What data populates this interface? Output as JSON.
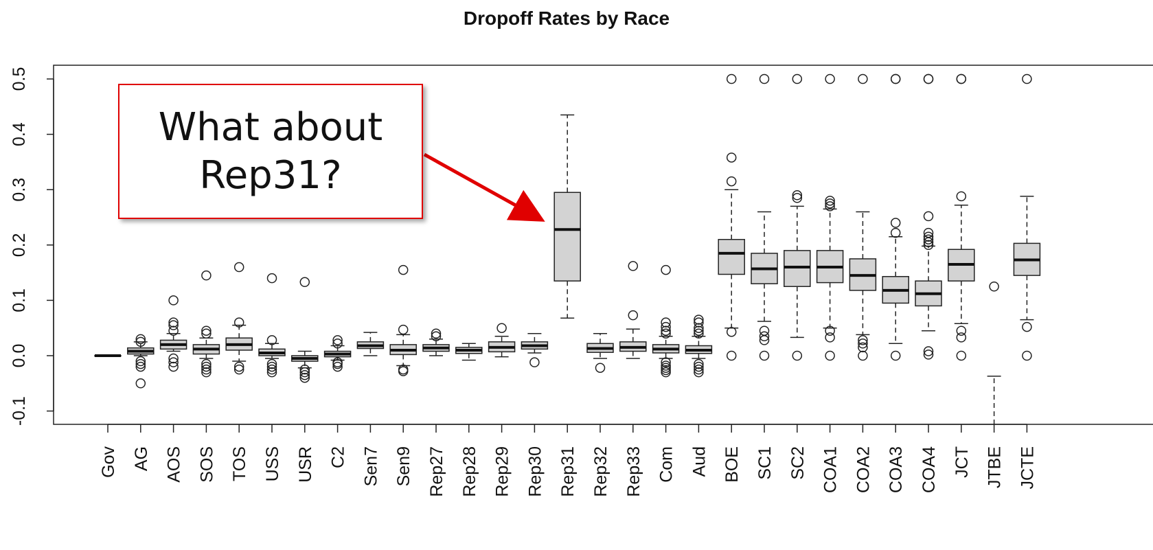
{
  "chart_data": {
    "type": "boxplot",
    "title": "Dropoff Rates by Race",
    "xlabel": "",
    "ylabel": "",
    "ylim": [
      -0.12,
      0.52
    ],
    "yticks": [
      -0.1,
      0.0,
      0.1,
      0.2,
      0.3,
      0.4,
      0.5
    ],
    "ytick_labels": [
      "-0.1",
      "0.0",
      "0.1",
      "0.2",
      "0.3",
      "0.4",
      "0.5"
    ],
    "grid": false,
    "box_fill": "#d3d3d3",
    "categories": [
      "Gov",
      "AG",
      "AOS",
      "SOS",
      "TOS",
      "USS",
      "USR",
      "C2",
      "Sen7",
      "Sen9",
      "Rep27",
      "Rep28",
      "Rep29",
      "Rep30",
      "Rep31",
      "Rep32",
      "Rep33",
      "Com",
      "Aud",
      "BOE",
      "SC1",
      "SC2",
      "COA1",
      "COA2",
      "COA3",
      "COA4",
      "JCT",
      "JTBE",
      "JCTE"
    ],
    "boxes": [
      {
        "min": 0.0,
        "q1": 0.0,
        "median": 0.0,
        "q3": 0.0,
        "max": 0.0,
        "outliers": []
      },
      {
        "min": 0.0,
        "q1": 0.003,
        "median": 0.008,
        "q3": 0.014,
        "max": 0.025,
        "outliers": [
          0.03,
          0.025,
          -0.01,
          -0.015,
          -0.02,
          -0.05
        ]
      },
      {
        "min": 0.008,
        "q1": 0.012,
        "median": 0.02,
        "q3": 0.028,
        "max": 0.04,
        "outliers": [
          0.1,
          0.06,
          0.055,
          0.045,
          -0.005,
          -0.012,
          -0.02
        ]
      },
      {
        "min": -0.005,
        "q1": 0.003,
        "median": 0.012,
        "q3": 0.02,
        "max": 0.032,
        "outliers": [
          0.145,
          0.045,
          0.04,
          -0.015,
          -0.02,
          -0.025,
          -0.03
        ]
      },
      {
        "min": -0.01,
        "q1": 0.01,
        "median": 0.02,
        "q3": 0.032,
        "max": 0.055,
        "outliers": [
          0.16,
          0.06,
          -0.02,
          -0.025
        ]
      },
      {
        "min": -0.005,
        "q1": 0.0,
        "median": 0.005,
        "q3": 0.012,
        "max": 0.022,
        "outliers": [
          0.14,
          0.028,
          -0.015,
          -0.02,
          -0.025,
          -0.03
        ]
      },
      {
        "min": -0.022,
        "q1": -0.01,
        "median": -0.005,
        "q3": 0.0,
        "max": 0.008,
        "outliers": [
          0.133,
          -0.025,
          -0.03,
          -0.035,
          -0.04
        ]
      },
      {
        "min": -0.008,
        "q1": -0.002,
        "median": 0.003,
        "q3": 0.008,
        "max": 0.018,
        "outliers": [
          0.028,
          0.022,
          -0.012,
          -0.015,
          -0.02
        ]
      },
      {
        "min": 0.0,
        "q1": 0.013,
        "median": 0.018,
        "q3": 0.025,
        "max": 0.042,
        "outliers": []
      },
      {
        "min": -0.018,
        "q1": 0.002,
        "median": 0.01,
        "q3": 0.02,
        "max": 0.038,
        "outliers": [
          0.155,
          0.047,
          -0.025,
          -0.028
        ]
      },
      {
        "min": 0.0,
        "q1": 0.008,
        "median": 0.014,
        "q3": 0.02,
        "max": 0.03,
        "outliers": [
          0.04,
          0.035
        ]
      },
      {
        "min": -0.008,
        "q1": 0.004,
        "median": 0.01,
        "q3": 0.015,
        "max": 0.022,
        "outliers": []
      },
      {
        "min": -0.002,
        "q1": 0.007,
        "median": 0.015,
        "q3": 0.025,
        "max": 0.035,
        "outliers": [
          0.05
        ]
      },
      {
        "min": 0.005,
        "q1": 0.012,
        "median": 0.018,
        "q3": 0.025,
        "max": 0.04,
        "outliers": [
          -0.012
        ]
      },
      {
        "min": 0.068,
        "q1": 0.135,
        "median": 0.228,
        "q3": 0.295,
        "max": 0.435,
        "outliers": []
      },
      {
        "min": -0.005,
        "q1": 0.006,
        "median": 0.013,
        "q3": 0.022,
        "max": 0.04,
        "outliers": [
          -0.022
        ]
      },
      {
        "min": -0.005,
        "q1": 0.008,
        "median": 0.015,
        "q3": 0.025,
        "max": 0.048,
        "outliers": [
          0.162,
          0.073
        ]
      },
      {
        "min": -0.005,
        "q1": 0.005,
        "median": 0.012,
        "q3": 0.02,
        "max": 0.035,
        "outliers": [
          0.155,
          0.06,
          0.052,
          0.045,
          0.04,
          -0.012,
          -0.018,
          -0.022,
          -0.026,
          -0.03
        ]
      },
      {
        "min": -0.005,
        "q1": 0.004,
        "median": 0.01,
        "q3": 0.018,
        "max": 0.035,
        "outliers": [
          0.065,
          0.06,
          0.05,
          0.045,
          0.04,
          -0.015,
          -0.02,
          -0.025,
          -0.03
        ]
      },
      {
        "min": 0.05,
        "q1": 0.147,
        "median": 0.185,
        "q3": 0.21,
        "max": 0.3,
        "outliers": [
          0.5,
          0.358,
          0.315,
          0.043,
          0.0
        ]
      },
      {
        "min": 0.062,
        "q1": 0.13,
        "median": 0.157,
        "q3": 0.185,
        "max": 0.26,
        "outliers": [
          0.5,
          0.045,
          0.035,
          0.028,
          0.0
        ]
      },
      {
        "min": 0.033,
        "q1": 0.125,
        "median": 0.16,
        "q3": 0.19,
        "max": 0.27,
        "outliers": [
          0.5,
          0.29,
          0.285,
          0.0
        ]
      },
      {
        "min": 0.05,
        "q1": 0.132,
        "median": 0.16,
        "q3": 0.19,
        "max": 0.265,
        "outliers": [
          0.5,
          0.28,
          0.275,
          0.27,
          0.045,
          0.033,
          0.0
        ]
      },
      {
        "min": 0.038,
        "q1": 0.118,
        "median": 0.145,
        "q3": 0.175,
        "max": 0.26,
        "outliers": [
          0.5,
          0.028,
          0.022,
          0.015,
          0.0
        ]
      },
      {
        "min": 0.022,
        "q1": 0.095,
        "median": 0.118,
        "q3": 0.143,
        "max": 0.215,
        "outliers": [
          0.5,
          0.5,
          0.24,
          0.222,
          0.0
        ]
      },
      {
        "min": 0.045,
        "q1": 0.09,
        "median": 0.112,
        "q3": 0.135,
        "max": 0.198,
        "outliers": [
          0.5,
          0.5,
          0.252,
          0.222,
          0.215,
          0.21,
          0.205,
          0.2,
          0.008,
          0.002
        ]
      },
      {
        "min": 0.058,
        "q1": 0.135,
        "median": 0.165,
        "q3": 0.192,
        "max": 0.272,
        "outliers": [
          0.5,
          0.5,
          0.288,
          0.045,
          0.033,
          0.0
        ]
      },
      {
        "min": -0.135,
        "q1": -0.13,
        "median": -0.13,
        "q3": -0.13,
        "max": -0.037,
        "outliers": [
          0.125
        ]
      },
      {
        "min": 0.065,
        "q1": 0.145,
        "median": 0.173,
        "q3": 0.203,
        "max": 0.288,
        "outliers": [
          0.5,
          0.052,
          0.0
        ]
      }
    ],
    "annotations": [
      {
        "text_lines": [
          "What about",
          "Rep31?"
        ],
        "points_to": "Rep31",
        "border_color": "#e00000",
        "arrow_color": "#e00000"
      }
    ]
  }
}
